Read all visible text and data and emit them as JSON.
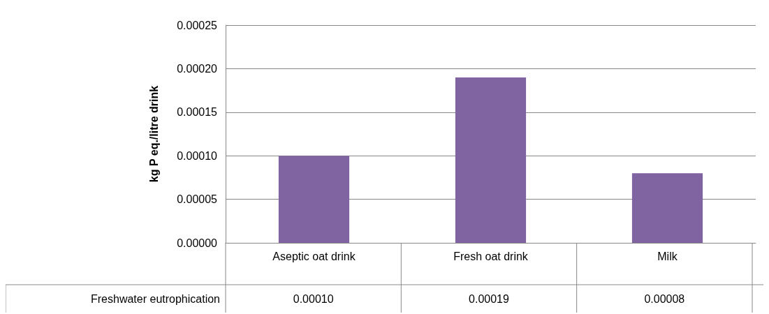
{
  "chart_data": {
    "type": "bar",
    "ylabel": "kg P eq./litre drink",
    "categories": [
      "Aseptic oat drink",
      "Fresh oat drink",
      "Milk"
    ],
    "series": [
      {
        "name": "Freshwater eutrophication",
        "color": "#8064a2",
        "values": [
          0.0001,
          0.00019,
          8e-05
        ],
        "value_labels": [
          "0.00010",
          "0.00019",
          "0.00008"
        ]
      }
    ],
    "ylim": [
      0,
      0.00025
    ],
    "yticks": [
      {
        "value": 0,
        "label": "0.00000"
      },
      {
        "value": 5e-05,
        "label": "0.00005"
      },
      {
        "value": 0.0001,
        "label": "0.00010"
      },
      {
        "value": 0.00015,
        "label": "0.00015"
      },
      {
        "value": 0.0002,
        "label": "0.00020"
      },
      {
        "value": 0.00025,
        "label": "0.00025"
      }
    ],
    "grid": true,
    "legend": false
  }
}
